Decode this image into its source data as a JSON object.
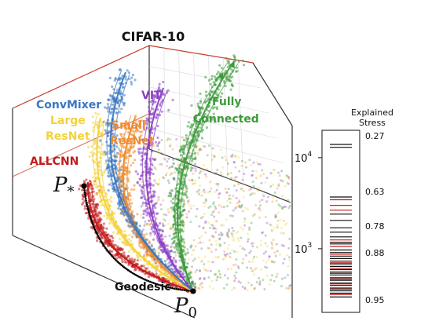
{
  "chart_data": [
    {
      "type": "scatter",
      "title": "CIFAR-10",
      "series": [
        {
          "name": "ConvMixer",
          "color": "#3a78c2"
        },
        {
          "name": "Large ResNet",
          "color": "#f2d23a"
        },
        {
          "name": "ALLCNN",
          "color": "#c21d1d"
        },
        {
          "name": "Small ResNet",
          "color": "#f08a2c"
        },
        {
          "name": "VIT",
          "color": "#8a3fc4"
        },
        {
          "name": "Fully Connected",
          "color": "#3c9a3a"
        },
        {
          "name": "Geodesic",
          "color": "#000000"
        }
      ],
      "annotations": [
        "P",
        "*",
        "P",
        "0"
      ],
      "grid": true
    },
    {
      "type": "bar",
      "title": "Explained Stress",
      "yscale": "log",
      "ylim": [
        200,
        20000
      ],
      "y_ticks": [
        {
          "base": "10",
          "exp": "4",
          "value": 10000
        },
        {
          "base": "10",
          "exp": "3",
          "value": 1000
        }
      ],
      "stress_labels": [
        "0.27",
        "0.63",
        "0.78",
        "0.88",
        "0.95"
      ],
      "lines": {
        "black": [
          14000,
          13000,
          3700,
          2400,
          2050,
          1700,
          1520,
          1350,
          1180,
          1130,
          970,
          910,
          830,
          780,
          730,
          680,
          640,
          590,
          555,
          515,
          480,
          450,
          420,
          395,
          370,
          345,
          325,
          295
        ],
        "red": [
          3450,
          3000,
          2650,
          1250,
          1060,
          870,
          700,
          610,
          535,
          465,
          410,
          360,
          315
        ]
      }
    }
  ]
}
